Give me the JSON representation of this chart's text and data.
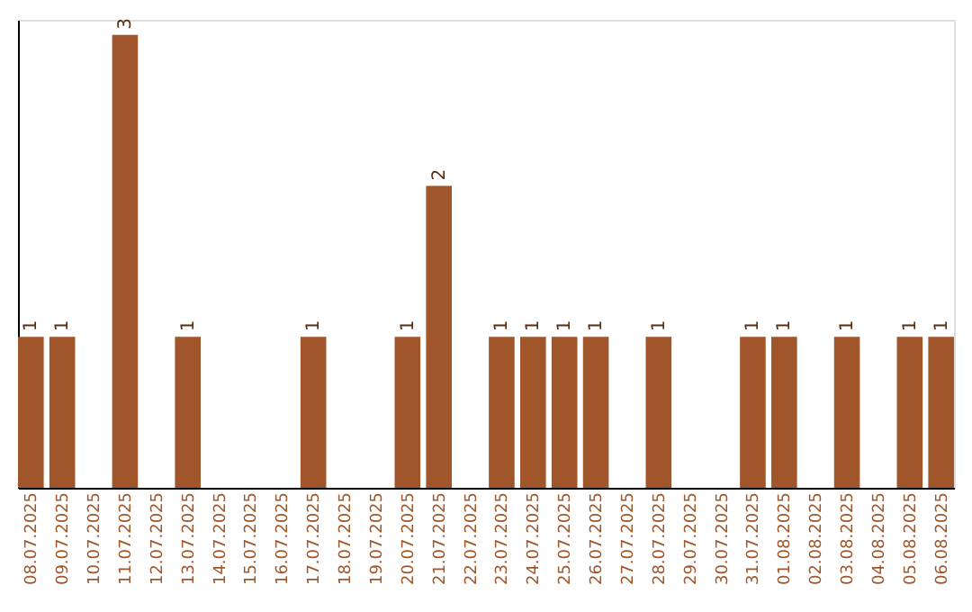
{
  "chart_data": {
    "type": "bar",
    "categories": [
      "08.07.2025",
      "09.07.2025",
      "10.07.2025",
      "11.07.2025",
      "12.07.2025",
      "13.07.2025",
      "14.07.2025",
      "15.07.2025",
      "16.07.2025",
      "17.07.2025",
      "18.07.2025",
      "19.07.2025",
      "20.07.2025",
      "21.07.2025",
      "22.07.2025",
      "23.07.2025",
      "24.07.2025",
      "25.07.2025",
      "26.07.2025",
      "27.07.2025",
      "28.07.2025",
      "29.07.2025",
      "30.07.2025",
      "31.07.2025",
      "01.08.2025",
      "02.08.2025",
      "03.08.2025",
      "04.08.2025",
      "05.08.2025",
      "06.08.2025"
    ],
    "values": [
      1,
      1,
      0,
      3,
      0,
      1,
      0,
      0,
      0,
      1,
      0,
      0,
      1,
      2,
      0,
      1,
      1,
      1,
      1,
      0,
      1,
      0,
      0,
      1,
      1,
      0,
      1,
      0,
      1,
      1
    ],
    "value_labels": [
      "1",
      "1",
      null,
      "3",
      null,
      "1",
      null,
      null,
      null,
      "1",
      null,
      null,
      "1",
      "2",
      null,
      "1",
      "1",
      "1",
      "1",
      null,
      "1",
      null,
      null,
      "1",
      "1",
      null,
      "1",
      null,
      "1",
      "1"
    ],
    "color": "#a0562a",
    "ylim": [
      0,
      3.1
    ],
    "tick_labels": "x",
    "grid": false
  }
}
